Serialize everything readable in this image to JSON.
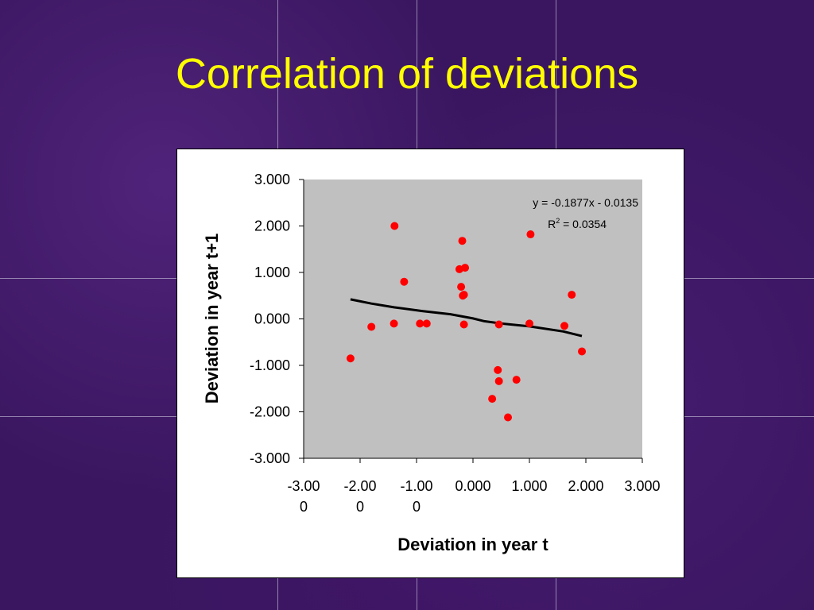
{
  "slide": {
    "title": "Correlation of deviations",
    "background_color": "#3a1660",
    "title_color": "#ffff00"
  },
  "chart_data": {
    "type": "scatter",
    "xlabel": "Deviation in year t",
    "ylabel": "Deviation in year t+1",
    "xlim": [
      -3,
      3
    ],
    "ylim": [
      -3,
      3
    ],
    "x_ticks": [
      -3,
      -2,
      -1,
      0,
      1,
      2,
      3
    ],
    "y_ticks": [
      -3,
      -2,
      -1,
      0,
      1,
      2,
      3
    ],
    "x_tick_labels": [
      [
        "-3.00",
        "0"
      ],
      [
        "-2.00",
        "0"
      ],
      [
        "-1.00",
        "0"
      ],
      [
        "0.000"
      ],
      [
        "1.000"
      ],
      [
        "2.000"
      ],
      [
        "3.000"
      ]
    ],
    "y_tick_labels": [
      "-3.000",
      "-2.000",
      "-1.000",
      "0.000",
      "1.000",
      "2.000",
      "3.000"
    ],
    "plot_background": "#c0c0c0",
    "marker_color": "#ff0000",
    "trendline_color": "#000000",
    "points": [
      {
        "x": -2.17,
        "y": -0.85
      },
      {
        "x": -1.8,
        "y": -0.17
      },
      {
        "x": -1.39,
        "y": 2.0
      },
      {
        "x": -1.4,
        "y": -0.1
      },
      {
        "x": -1.22,
        "y": 0.8
      },
      {
        "x": -0.94,
        "y": -0.1
      },
      {
        "x": -0.82,
        "y": -0.1
      },
      {
        "x": -0.24,
        "y": 1.07
      },
      {
        "x": -0.19,
        "y": 1.68
      },
      {
        "x": -0.14,
        "y": 1.1
      },
      {
        "x": -0.21,
        "y": 0.69
      },
      {
        "x": -0.18,
        "y": 0.5
      },
      {
        "x": -0.16,
        "y": 0.52
      },
      {
        "x": -0.16,
        "y": -0.12
      },
      {
        "x": 0.34,
        "y": -1.72
      },
      {
        "x": 0.44,
        "y": -1.1
      },
      {
        "x": 0.46,
        "y": -1.34
      },
      {
        "x": 0.46,
        "y": -0.12
      },
      {
        "x": 0.62,
        "y": -2.12
      },
      {
        "x": 0.77,
        "y": -1.31
      },
      {
        "x": 1.02,
        "y": 1.82
      },
      {
        "x": 1.0,
        "y": -0.1
      },
      {
        "x": 1.62,
        "y": -0.15
      },
      {
        "x": 1.75,
        "y": 0.52
      },
      {
        "x": 1.93,
        "y": -0.7
      }
    ],
    "trendline": {
      "slope": -0.1877,
      "intercept": -0.0135,
      "x_range": [
        -2.17,
        1.93
      ],
      "path": [
        {
          "x": -2.17,
          "y": 0.42
        },
        {
          "x": -1.8,
          "y": 0.33
        },
        {
          "x": -1.4,
          "y": 0.25
        },
        {
          "x": -0.9,
          "y": 0.17
        },
        {
          "x": -0.4,
          "y": 0.1
        },
        {
          "x": 0.0,
          "y": 0.01
        },
        {
          "x": 0.2,
          "y": -0.05
        },
        {
          "x": 0.5,
          "y": -0.1
        },
        {
          "x": 1.0,
          "y": -0.16
        },
        {
          "x": 1.6,
          "y": -0.27
        },
        {
          "x": 1.93,
          "y": -0.37
        }
      ],
      "equation_label": "y = -0.1877x - 0.0135",
      "r2_label_prefix": "R",
      "r2_label_superscript": "2",
      "r2_label_suffix": " = 0.0354"
    }
  }
}
